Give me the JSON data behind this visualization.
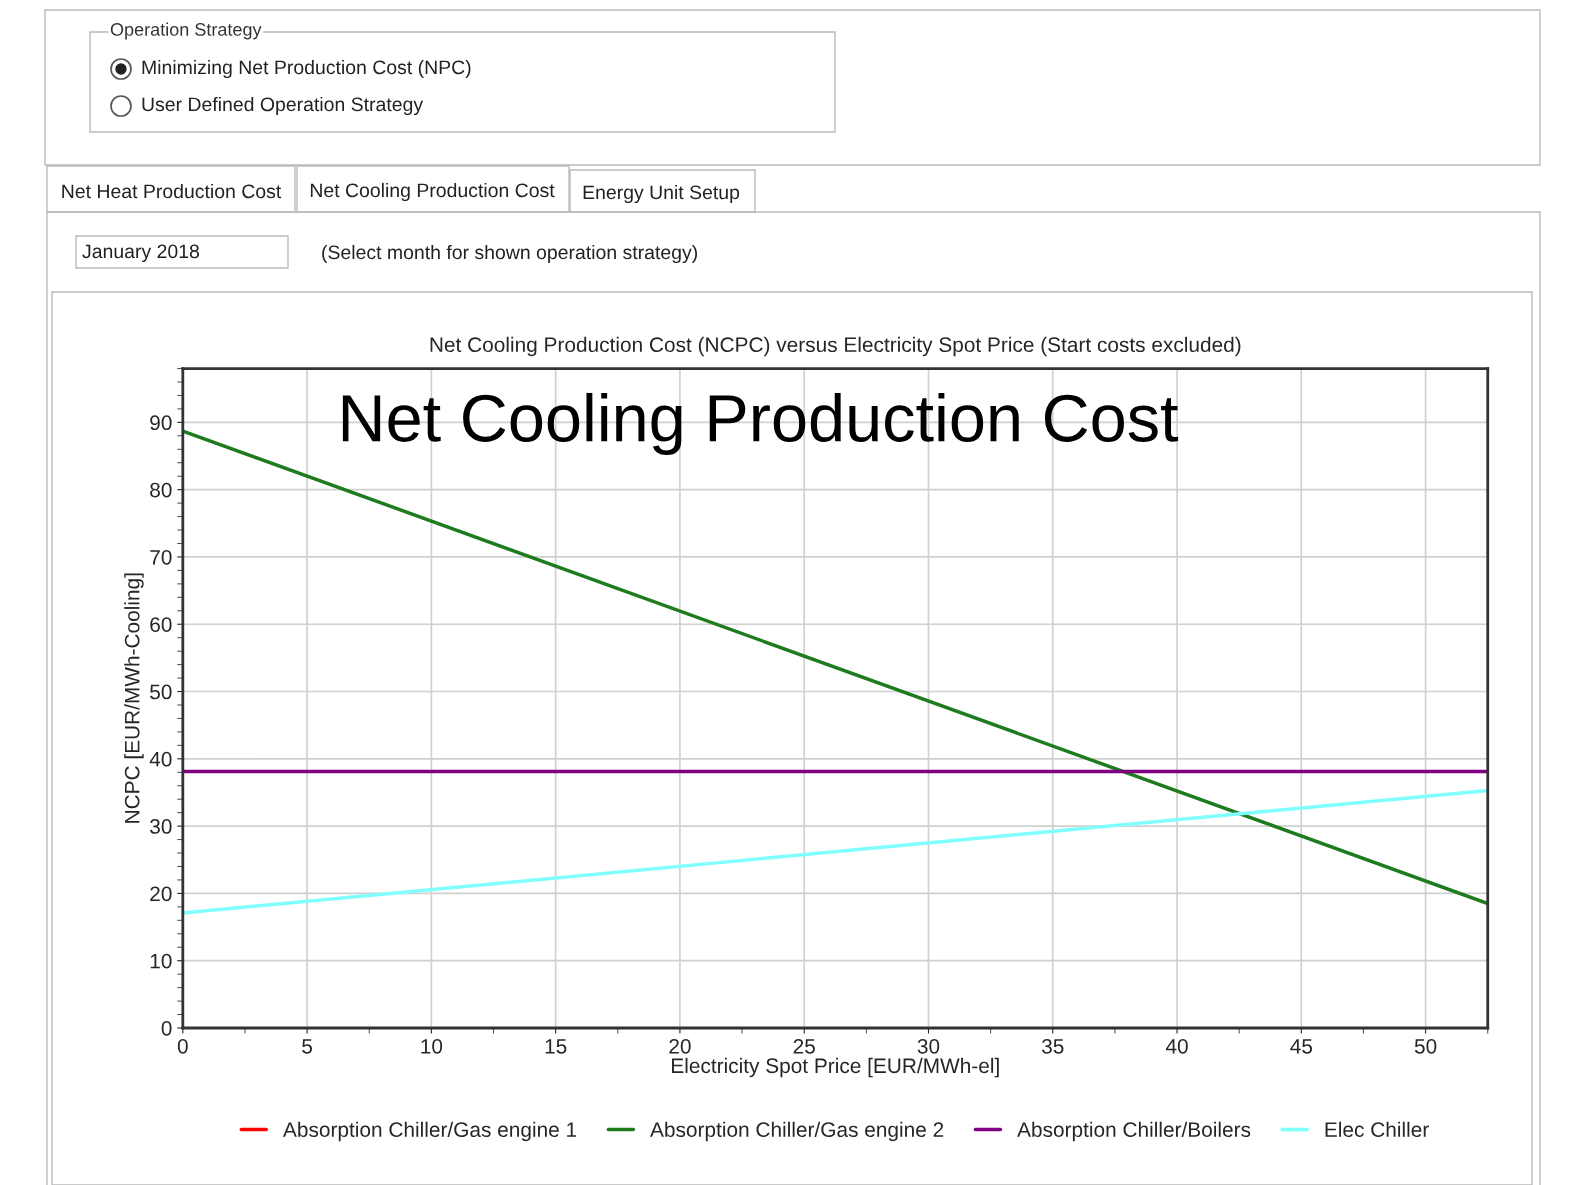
{
  "chart_data": {
    "type": "line",
    "title": "Net Cooling Production Cost (NCPC) versus Electricity Spot Price (Start costs excluded)",
    "xlabel": "Electricity Spot Price [EUR/MWh-el]",
    "ylabel": "NCPC [EUR/MWh-Cooling]",
    "annotations": [
      "Operation Strategy",
      "Minimizing Net Production Cost (NPC)",
      "User Defined Operation Strategy",
      "Net Heat Production Cost",
      "Net Cooling Production Cost",
      "Energy Unit Setup",
      "January 2018",
      "(Select month for shown operation strategy)",
      "Net Cooling Production Cost"
    ],
    "x": [
      0,
      52.5
    ],
    "series": [
      {
        "name": "Absorption Chiller/Gas engine 1",
        "color": "#ff0000",
        "values": [
          null,
          null
        ]
      },
      {
        "name": "Absorption Chiller/Gas engine 2",
        "color": "#1e7b1e",
        "values": [
          88.7,
          18.5
        ]
      },
      {
        "name": "Absorption Chiller/Boilers",
        "color": "#800080",
        "values": [
          38.1,
          38.1
        ]
      },
      {
        "name": "Elec Chiller",
        "color": "#80ffff",
        "values": [
          17.1,
          35.3
        ]
      }
    ],
    "xlim": [
      0,
      52.5
    ],
    "xticks": [
      0,
      5,
      10,
      15,
      20,
      25,
      30,
      35,
      40,
      45,
      50
    ],
    "ylim": [
      0,
      98
    ],
    "yticks": [
      0,
      10,
      20,
      30,
      40,
      50,
      60,
      70,
      80,
      90
    ],
    "grid": true,
    "legend": "bottom",
    "marker": "none",
    "line_style": "solid"
  }
}
